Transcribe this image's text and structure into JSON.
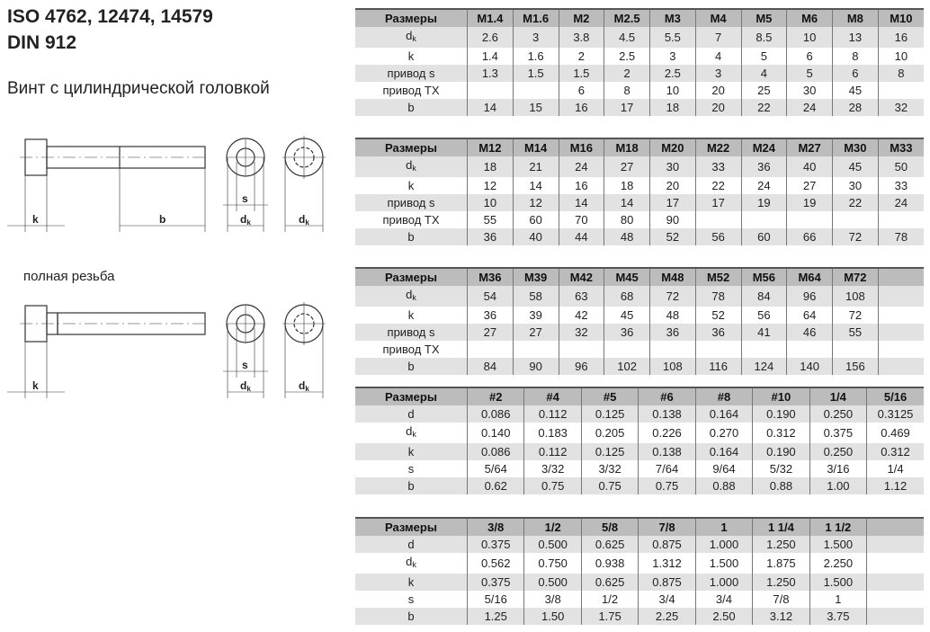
{
  "title": {
    "line1": "ISO 4762, 12474, 14579",
    "line2": "DIN 912",
    "subtitle": "Винт с цилиндрической головкой",
    "full_thread": "полная резьба"
  },
  "drawing_labels": {
    "k": "k",
    "b": "b",
    "s": "s",
    "dk": "d",
    "dk_sub": "k"
  },
  "tables": [
    {
      "header": [
        "Размеры",
        "M1.4",
        "M1.6",
        "M2",
        "M2.5",
        "M3",
        "M4",
        "M5",
        "M6",
        "M8",
        "M10"
      ],
      "rows": [
        [
          "d|k",
          "2.6",
          "3",
          "3.8",
          "4.5",
          "5.5",
          "7",
          "8.5",
          "10",
          "13",
          "16"
        ],
        [
          "k",
          "1.4",
          "1.6",
          "2",
          "2.5",
          "3",
          "4",
          "5",
          "6",
          "8",
          "10"
        ],
        [
          "привод s",
          "1.3",
          "1.5",
          "1.5",
          "2",
          "2.5",
          "3",
          "4",
          "5",
          "6",
          "8"
        ],
        [
          "привод TX",
          "",
          "",
          "6",
          "8",
          "10",
          "20",
          "25",
          "30",
          "45",
          ""
        ],
        [
          "b",
          "14",
          "15",
          "16",
          "17",
          "18",
          "20",
          "22",
          "24",
          "28",
          "32"
        ]
      ]
    },
    {
      "header": [
        "Размеры",
        "M12",
        "M14",
        "M16",
        "M18",
        "M20",
        "M22",
        "M24",
        "M27",
        "M30",
        "M33"
      ],
      "rows": [
        [
          "d|k",
          "18",
          "21",
          "24",
          "27",
          "30",
          "33",
          "36",
          "40",
          "45",
          "50"
        ],
        [
          "k",
          "12",
          "14",
          "16",
          "18",
          "20",
          "22",
          "24",
          "27",
          "30",
          "33"
        ],
        [
          "привод s",
          "10",
          "12",
          "14",
          "14",
          "17",
          "17",
          "19",
          "19",
          "22",
          "24"
        ],
        [
          "привод TX",
          "55",
          "60",
          "70",
          "80",
          "90",
          "",
          "",
          "",
          "",
          ""
        ],
        [
          "b",
          "36",
          "40",
          "44",
          "48",
          "52",
          "56",
          "60",
          "66",
          "72",
          "78"
        ]
      ]
    },
    {
      "header": [
        "Размеры",
        "M36",
        "M39",
        "M42",
        "M45",
        "M48",
        "M52",
        "M56",
        "M64",
        "M72",
        ""
      ],
      "rows": [
        [
          "d|k",
          "54",
          "58",
          "63",
          "68",
          "72",
          "78",
          "84",
          "96",
          "108",
          ""
        ],
        [
          "k",
          "36",
          "39",
          "42",
          "45",
          "48",
          "52",
          "56",
          "64",
          "72",
          ""
        ],
        [
          "привод s",
          "27",
          "27",
          "32",
          "36",
          "36",
          "36",
          "41",
          "46",
          "55",
          ""
        ],
        [
          "привод TX",
          "",
          "",
          "",
          "",
          "",
          "",
          "",
          "",
          "",
          ""
        ],
        [
          "b",
          "84",
          "90",
          "96",
          "102",
          "108",
          "116",
          "124",
          "140",
          "156",
          ""
        ]
      ]
    },
    {
      "header": [
        "Размеры",
        "#2",
        "#4",
        "#5",
        "#6",
        "#8",
        "#10",
        "1/4",
        "5/16"
      ],
      "rows": [
        [
          "d",
          "0.086",
          "0.112",
          "0.125",
          "0.138",
          "0.164",
          "0.190",
          "0.250",
          "0.3125"
        ],
        [
          "d|k",
          "0.140",
          "0.183",
          "0.205",
          "0.226",
          "0.270",
          "0.312",
          "0.375",
          "0.469"
        ],
        [
          "k",
          "0.086",
          "0.112",
          "0.125",
          "0.138",
          "0.164",
          "0.190",
          "0.250",
          "0.312"
        ],
        [
          "s",
          "5/64",
          "3/32",
          "3/32",
          "7/64",
          "9/64",
          "5/32",
          "3/16",
          "1/4"
        ],
        [
          "b",
          "0.62",
          "0.75",
          "0.75",
          "0.75",
          "0.88",
          "0.88",
          "1.00",
          "1.12"
        ]
      ]
    },
    {
      "header": [
        "Размеры",
        "3/8",
        "1/2",
        "5/8",
        "7/8",
        "1",
        "1 1/4",
        "1 1/2",
        ""
      ],
      "rows": [
        [
          "d",
          "0.375",
          "0.500",
          "0.625",
          "0.875",
          "1.000",
          "1.250",
          "1.500",
          ""
        ],
        [
          "d|k",
          "0.562",
          "0.750",
          "0.938",
          "1.312",
          "1.500",
          "1.875",
          "2.250",
          ""
        ],
        [
          "k",
          "0.375",
          "0.500",
          "0.625",
          "0.875",
          "1.000",
          "1.250",
          "1.500",
          ""
        ],
        [
          "s",
          "5/16",
          "3/8",
          "1/2",
          "3/4",
          "3/4",
          "7/8",
          "1",
          ""
        ],
        [
          "b",
          "1.25",
          "1.50",
          "1.75",
          "2.25",
          "2.50",
          "3.12",
          "3.75",
          ""
        ]
      ]
    }
  ]
}
